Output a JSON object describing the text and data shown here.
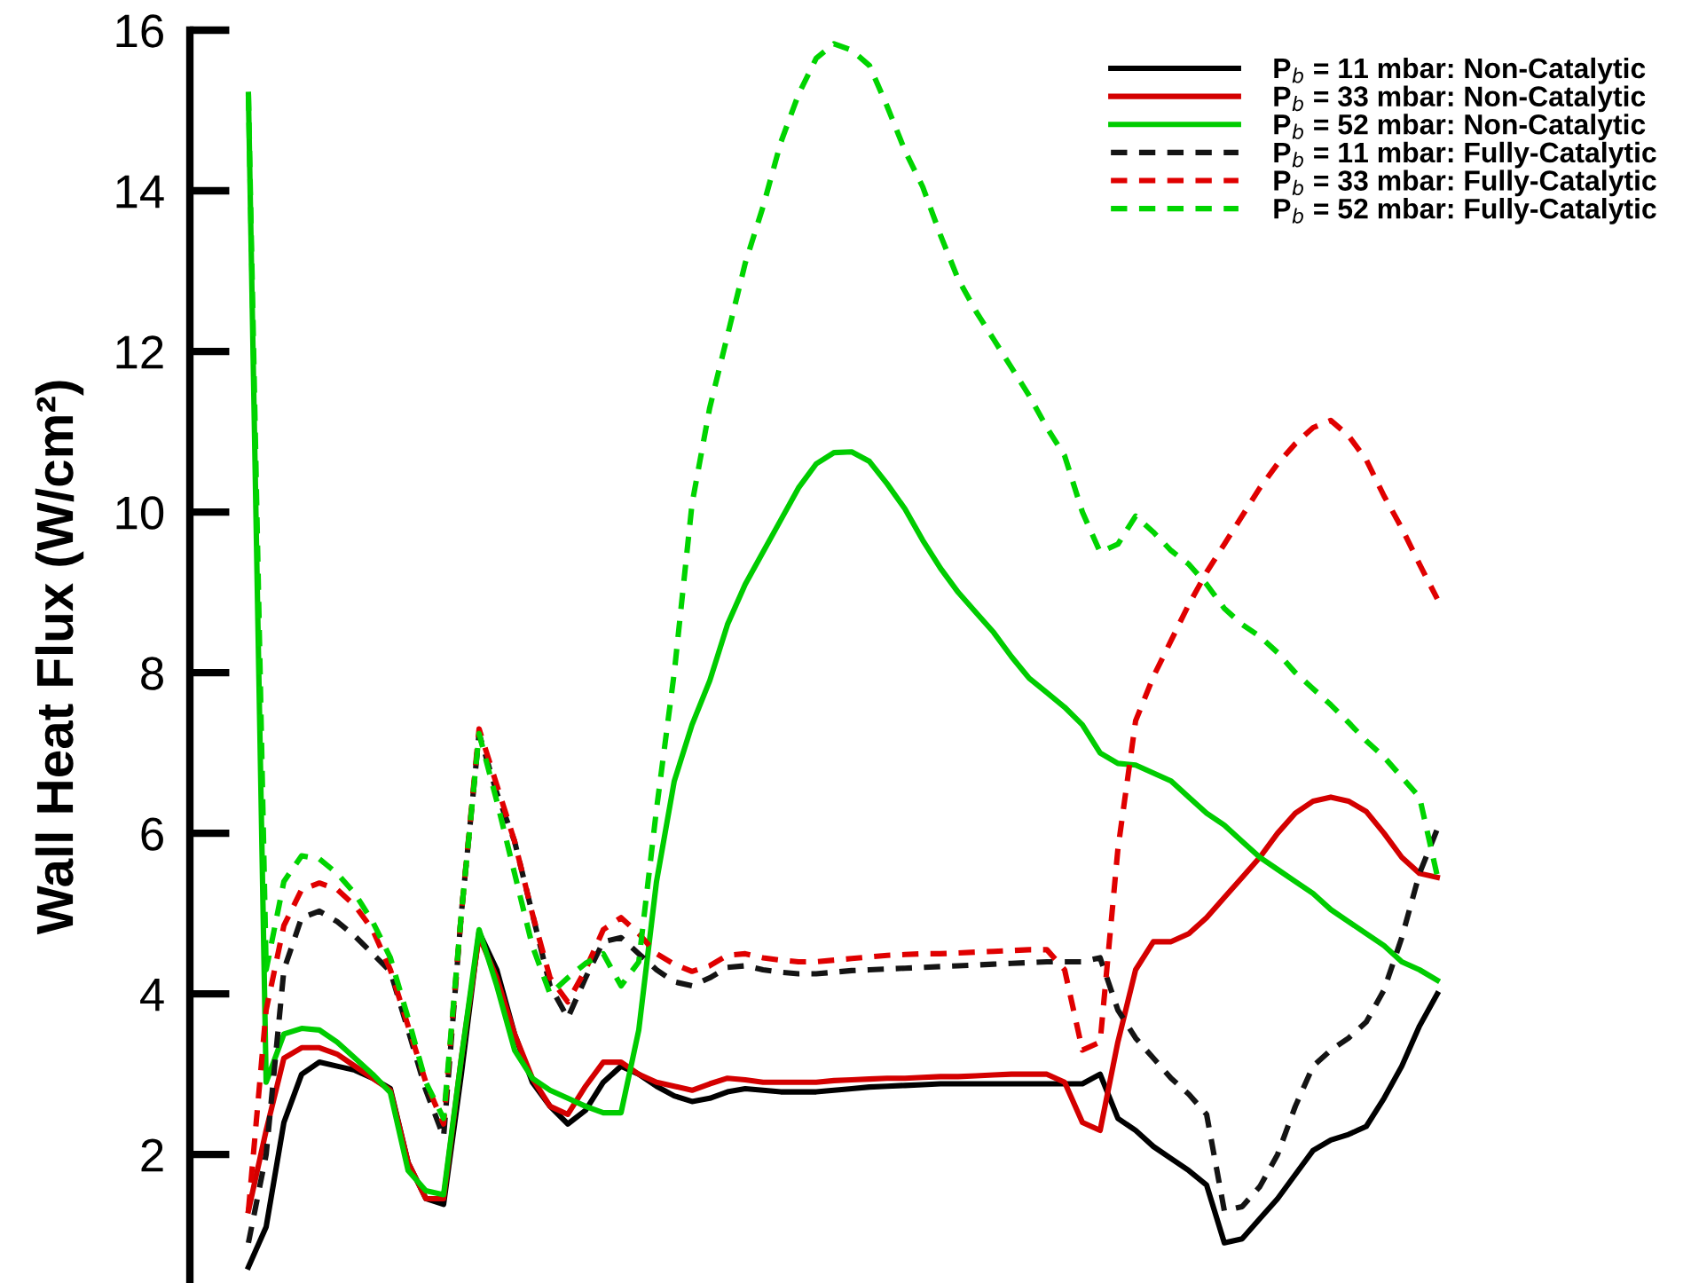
{
  "chart_data": {
    "type": "line",
    "ylabel": "Wall Heat Flux (W/cm²)",
    "categories": [
      null,
      null,
      null,
      null,
      null,
      null,
      null,
      null,
      null,
      null,
      null,
      null,
      null,
      null,
      null,
      null,
      null,
      null,
      null,
      null,
      null,
      null,
      null,
      null,
      null,
      null,
      null,
      null,
      null,
      null,
      null,
      null,
      null,
      null,
      null,
      null,
      null,
      null,
      null,
      null,
      null,
      null,
      null,
      null,
      null,
      null,
      null,
      null,
      null,
      null,
      null,
      null,
      null,
      null,
      null,
      null,
      null,
      null,
      null,
      null,
      null,
      null,
      null,
      null,
      null,
      null,
      null,
      null
    ],
    "ylim": [
      0.4,
      16
    ],
    "yticks": [
      2,
      4,
      6,
      8,
      10,
      12,
      14,
      16
    ],
    "tick_labels": "y",
    "grid": false,
    "legend": "top right",
    "marker": "none",
    "series": [
      {
        "name": "P$_{b}$ = 11 mbar: Non-Catalytic",
        "color": "#000000",
        "line_style": "solid",
        "values": [
          0.6,
          1.1,
          2.4,
          3.0,
          3.15,
          3.1,
          3.05,
          2.95,
          2.82,
          1.9,
          1.45,
          1.38,
          3.0,
          4.77,
          4.3,
          3.5,
          2.9,
          2.6,
          2.38,
          2.55,
          2.9,
          3.1,
          3.0,
          2.85,
          2.73,
          2.66,
          2.7,
          2.78,
          2.82,
          2.8,
          2.78,
          2.78,
          2.78,
          2.8,
          2.82,
          2.84,
          2.85,
          2.86,
          2.87,
          2.88,
          2.88,
          2.88,
          2.88,
          2.88,
          2.88,
          2.88,
          2.88,
          2.88,
          3.0,
          2.45,
          2.3,
          2.1,
          1.95,
          1.8,
          1.62,
          0.9,
          0.95,
          1.2,
          1.45,
          1.75,
          2.05,
          2.18,
          2.25,
          2.35,
          2.7,
          3.1,
          3.6,
          4.0
        ]
      },
      {
        "name": "P$_{b}$ = 33 mbar: Non-Catalytic",
        "color": "#d40000",
        "line_style": "solid",
        "values": [
          1.3,
          2.3,
          3.2,
          3.33,
          3.33,
          3.25,
          3.1,
          2.95,
          2.8,
          1.9,
          1.45,
          1.45,
          3.2,
          4.72,
          4.2,
          3.5,
          2.95,
          2.6,
          2.5,
          2.85,
          3.15,
          3.15,
          3.0,
          2.9,
          2.85,
          2.8,
          2.88,
          2.95,
          2.93,
          2.9,
          2.9,
          2.9,
          2.9,
          2.92,
          2.93,
          2.94,
          2.95,
          2.95,
          2.96,
          2.97,
          2.97,
          2.98,
          2.99,
          3.0,
          3.0,
          3.0,
          2.9,
          2.4,
          2.3,
          3.4,
          4.3,
          4.65,
          4.65,
          4.75,
          4.95,
          5.2,
          5.45,
          5.7,
          6.0,
          6.25,
          6.4,
          6.45,
          6.4,
          6.27,
          6.0,
          5.7,
          5.5,
          5.45
        ]
      },
      {
        "name": "P$_{b}$ = 52 mbar: Non-Catalytic",
        "color": "#00cc00",
        "line_style": "solid",
        "values": [
          15.2,
          2.9,
          3.5,
          3.57,
          3.55,
          3.4,
          3.2,
          3.0,
          2.77,
          1.8,
          1.55,
          1.5,
          3.2,
          4.8,
          4.1,
          3.3,
          2.95,
          2.8,
          2.7,
          2.6,
          2.52,
          2.52,
          3.55,
          5.4,
          6.65,
          7.35,
          7.9,
          8.6,
          9.1,
          9.5,
          9.9,
          10.3,
          10.6,
          10.74,
          10.75,
          10.63,
          10.35,
          10.04,
          9.65,
          9.3,
          9.0,
          8.75,
          8.5,
          8.2,
          7.93,
          7.75,
          7.57,
          7.35,
          7.0,
          6.87,
          6.85,
          6.75,
          6.65,
          6.45,
          6.25,
          6.1,
          5.9,
          5.7,
          5.55,
          5.4,
          5.25,
          5.05,
          4.9,
          4.75,
          4.6,
          4.4,
          4.3,
          4.17
        ]
      },
      {
        "name": "P$_{b}$ = 11 mbar: Fully-Catalytic",
        "color": "#141414",
        "line_style": "dashed",
        "values": [
          0.9,
          2.0,
          4.3,
          4.95,
          5.03,
          4.9,
          4.72,
          4.5,
          4.28,
          3.55,
          2.8,
          2.22,
          5.0,
          7.24,
          6.5,
          5.9,
          5.0,
          4.1,
          3.7,
          4.2,
          4.65,
          4.7,
          4.5,
          4.3,
          4.15,
          4.1,
          4.2,
          4.33,
          4.35,
          4.3,
          4.27,
          4.25,
          4.25,
          4.27,
          4.29,
          4.3,
          4.31,
          4.32,
          4.33,
          4.34,
          4.35,
          4.36,
          4.37,
          4.38,
          4.39,
          4.4,
          4.4,
          4.4,
          4.45,
          3.8,
          3.45,
          3.2,
          2.95,
          2.75,
          2.5,
          1.3,
          1.35,
          1.6,
          2.0,
          2.6,
          3.1,
          3.3,
          3.45,
          3.65,
          4.05,
          4.7,
          5.5,
          6.05
        ]
      },
      {
        "name": "P$_{b}$ = 33 mbar: Fully-Catalytic",
        "color": "#e00000",
        "line_style": "dashed",
        "values": [
          1.3,
          3.8,
          4.85,
          5.3,
          5.38,
          5.3,
          5.1,
          4.8,
          4.3,
          3.6,
          2.9,
          2.38,
          5.0,
          7.3,
          6.6,
          5.9,
          5.0,
          4.2,
          3.9,
          4.3,
          4.8,
          4.95,
          4.75,
          4.5,
          4.37,
          4.28,
          4.35,
          4.48,
          4.5,
          4.45,
          4.42,
          4.4,
          4.4,
          4.42,
          4.44,
          4.46,
          4.48,
          4.49,
          4.5,
          4.5,
          4.51,
          4.52,
          4.53,
          4.54,
          4.55,
          4.55,
          4.3,
          3.3,
          3.4,
          5.8,
          7.4,
          7.95,
          8.4,
          8.85,
          9.25,
          9.6,
          9.95,
          10.3,
          10.6,
          10.85,
          11.05,
          11.14,
          10.95,
          10.65,
          10.2,
          9.8,
          9.35,
          8.92
        ]
      },
      {
        "name": "P$_{b}$ = 52 mbar: Fully-Catalytic",
        "color": "#00d400",
        "line_style": "dashed",
        "values": [
          15.2,
          4.3,
          5.4,
          5.72,
          5.68,
          5.5,
          5.25,
          4.9,
          4.45,
          3.7,
          2.9,
          2.45,
          5.0,
          7.24,
          6.4,
          5.5,
          4.6,
          4.0,
          4.2,
          4.38,
          4.5,
          4.1,
          4.4,
          6.3,
          8.0,
          10.1,
          11.3,
          12.2,
          13.1,
          13.8,
          14.6,
          15.2,
          15.65,
          15.83,
          15.75,
          15.56,
          15.05,
          14.5,
          14.05,
          13.45,
          12.9,
          12.5,
          12.15,
          11.8,
          11.45,
          11.05,
          10.7,
          10.0,
          9.5,
          9.6,
          9.95,
          9.75,
          9.52,
          9.35,
          9.1,
          8.8,
          8.6,
          8.45,
          8.25,
          8.0,
          7.8,
          7.6,
          7.38,
          7.15,
          6.95,
          6.7,
          6.45,
          5.47
        ]
      }
    ]
  }
}
